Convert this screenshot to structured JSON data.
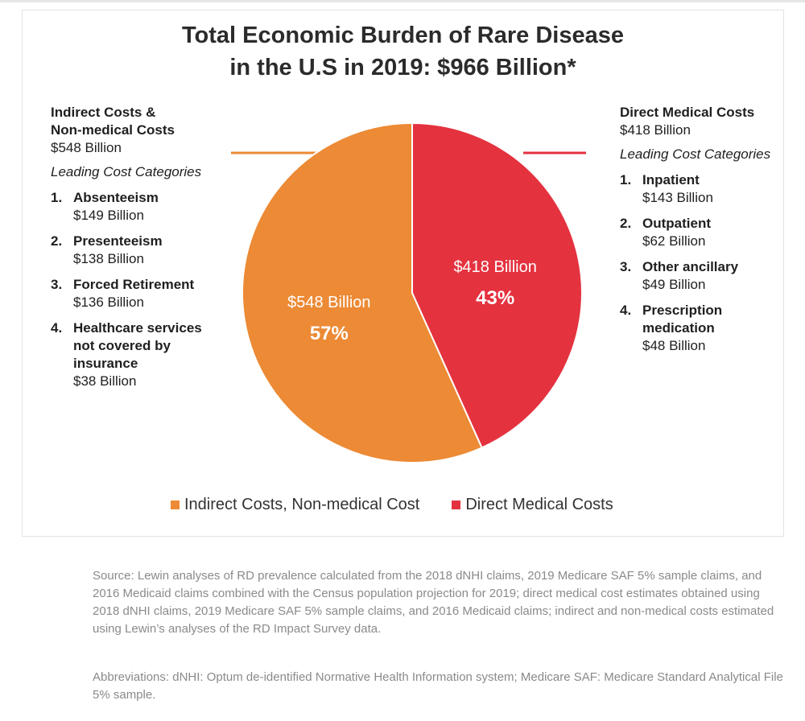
{
  "title_line1": "Total Economic Burden of Rare Disease",
  "title_line2": "in the U.S in 2019: $966 Billion*",
  "colors": {
    "indirect": "#ec8a35",
    "direct": "#e4323f"
  },
  "left_panel": {
    "heading1": "Indirect Costs &",
    "heading2": "Non-medical Costs",
    "amount": "$548 Billion",
    "subheading": "Leading Cost Categories",
    "items": [
      {
        "num": "1.",
        "name_lines": [
          "Absenteeism"
        ],
        "value": "$149 Billion"
      },
      {
        "num": "2.",
        "name_lines": [
          "Presenteeism"
        ],
        "value": "$138 Billion"
      },
      {
        "num": "3.",
        "name_lines": [
          "Forced Retirement"
        ],
        "value": "$136 Billion"
      },
      {
        "num": "4.",
        "name_lines": [
          "Healthcare services",
          "not covered by",
          "insurance"
        ],
        "value": "$38 Billion"
      }
    ]
  },
  "right_panel": {
    "heading1": "Direct Medical Costs",
    "amount": "$418 Billion",
    "subheading": "Leading Cost Categories",
    "items": [
      {
        "num": "1.",
        "name_lines": [
          "Inpatient"
        ],
        "value": "$143 Billion"
      },
      {
        "num": "2.",
        "name_lines": [
          "Outpatient"
        ],
        "value": "$62 Billion"
      },
      {
        "num": "3.",
        "name_lines": [
          "Other ancillary"
        ],
        "value": "$49 Billion"
      },
      {
        "num": "4.",
        "name_lines": [
          "Prescription",
          "medication"
        ],
        "value": "$48 Billion"
      }
    ]
  },
  "chart_data": {
    "type": "pie",
    "title": "Total Economic Burden of Rare Disease in the U.S in 2019: $966 Billion*",
    "slices": [
      {
        "label": "Direct Medical Costs",
        "value": 418,
        "percent": 43,
        "value_label": "$418 Billion",
        "pct_label": "43%",
        "color": "#e4323f"
      },
      {
        "label": "Indirect Costs, Non-medical Cost",
        "value": 548,
        "percent": 57,
        "value_label": "$548 Billion",
        "pct_label": "57%",
        "color": "#ec8a35"
      }
    ],
    "legend": {
      "position": "bottom",
      "entries": [
        "Indirect Costs, Non-medical Cost",
        "Direct Medical Costs"
      ]
    }
  },
  "legend_labels": {
    "indirect": "Indirect Costs, Non-medical Cost",
    "direct": "Direct Medical Costs"
  },
  "source_text": "Source: Lewin analyses of RD prevalence calculated from the 2018 dNHI claims, 2019 Medicare SAF 5% sample claims, and 2016 Medicaid claims combined with the Census population projection for 2019; direct medical cost estimates obtained using 2018 dNHI claims, 2019 Medicare SAF 5% sample claims, and 2016 Medicaid claims; indirect and non-medical costs estimated using Lewin’s analyses of the RD Impact Survey data.",
  "abbrev_text": "Abbreviations: dNHI: Optum de-identified Normative Health Information system; Medicare SAF: Medicare Standard Analytical File 5% sample."
}
